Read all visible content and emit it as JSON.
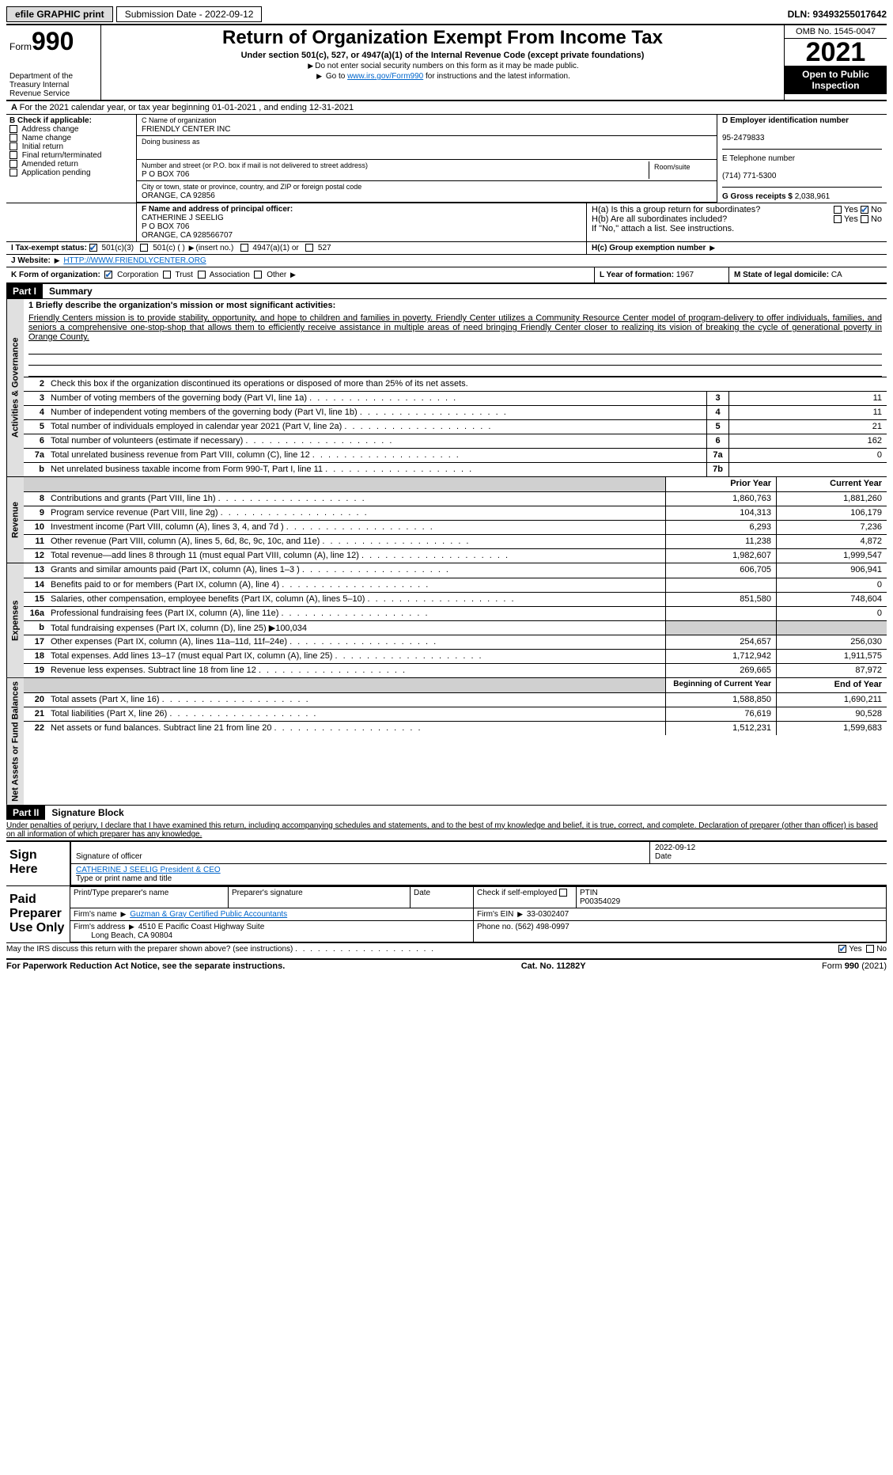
{
  "topbar": {
    "efile": "efile GRAPHIC print",
    "submission_label": "Submission Date - 2022-09-12",
    "dln_label": "DLN: 93493255017642"
  },
  "header": {
    "form_prefix": "Form",
    "form_num": "990",
    "dept": "Department of the Treasury Internal Revenue Service",
    "title": "Return of Organization Exempt From Income Tax",
    "subtitle": "Under section 501(c), 527, or 4947(a)(1) of the Internal Revenue Code (except private foundations)",
    "note1": "Do not enter social security numbers on this form as it may be made public.",
    "note2_pre": "Go to ",
    "note2_link": "www.irs.gov/Form990",
    "note2_post": " for instructions and the latest information.",
    "omb": "OMB No. 1545-0047",
    "year": "2021",
    "open": "Open to Public Inspection"
  },
  "sectionA": {
    "text": "For the 2021 calendar year, or tax year beginning 01-01-2021     , and ending 12-31-2021"
  },
  "blockB": {
    "label": "B Check if applicable:",
    "items": [
      "Address change",
      "Name change",
      "Initial return",
      "Final return/terminated",
      "Amended return",
      "Application pending"
    ]
  },
  "blockC": {
    "name_label": "C Name of organization",
    "name": "FRIENDLY CENTER INC",
    "dba_label": "Doing business as",
    "addr_label": "Number and street (or P.O. box if mail is not delivered to street address)",
    "room_label": "Room/suite",
    "addr": "P O BOX 706",
    "city_label": "City or town, state or province, country, and ZIP or foreign postal code",
    "city": "ORANGE, CA  92856"
  },
  "blockD": {
    "ein_label": "D Employer identification number",
    "ein": "95-2479833",
    "phone_label": "E Telephone number",
    "phone": "(714) 771-5300",
    "gross_label": "G Gross receipts $",
    "gross": "2,038,961"
  },
  "blockF": {
    "label": "F  Name and address of principal officer:",
    "name": "CATHERINE J SEELIG",
    "addr1": "P O BOX 706",
    "addr2": "ORANGE, CA  928566707"
  },
  "blockH": {
    "ha": "H(a)  Is this a group return for subordinates?",
    "hb": "H(b)  Are all subordinates included?",
    "hb_note": "If \"No,\" attach a list. See instructions.",
    "hc": "H(c)  Group exemption number",
    "yes": "Yes",
    "no": "No"
  },
  "blockI": {
    "label": "I   Tax-exempt status:",
    "opt1": "501(c)(3)",
    "opt2": "501(c) (  )",
    "opt2_note": "(insert no.)",
    "opt3": "4947(a)(1) or",
    "opt4": "527"
  },
  "blockJ": {
    "label": "J   Website:",
    "url": "HTTP://WWW.FRIENDLYCENTER.ORG"
  },
  "blockK": {
    "label": "K Form of organization:",
    "opts": [
      "Corporation",
      "Trust",
      "Association",
      "Other"
    ]
  },
  "blockL": {
    "label": "L Year of formation:",
    "val": "1967"
  },
  "blockM": {
    "label": "M State of legal domicile:",
    "val": "CA"
  },
  "part1": {
    "hdr": "Part I",
    "title": "Summary",
    "line1_label": "1  Briefly describe the organization's mission or most significant activities:",
    "mission": "Friendly Centers mission is to provide stability, opportunity, and hope to children and families in poverty. Friendly Center utilizes a Community Resource Center model of program-delivery to offer individuals, families, and seniors a comprehensive one-stop-shop that allows them to efficiently receive assistance in multiple areas of need bringing Friendly Center closer to realizing its vision of breaking the cycle of generational poverty in Orange County.",
    "line2": "Check this box      if the organization discontinued its operations or disposed of more than 25% of its net assets.",
    "lines_gov": [
      {
        "n": "3",
        "d": "Number of voting members of the governing body (Part VI, line 1a)",
        "c": "3",
        "v": "11"
      },
      {
        "n": "4",
        "d": "Number of independent voting members of the governing body (Part VI, line 1b)",
        "c": "4",
        "v": "11"
      },
      {
        "n": "5",
        "d": "Total number of individuals employed in calendar year 2021 (Part V, line 2a)",
        "c": "5",
        "v": "21"
      },
      {
        "n": "6",
        "d": "Total number of volunteers (estimate if necessary)",
        "c": "6",
        "v": "162"
      },
      {
        "n": "7a",
        "d": "Total unrelated business revenue from Part VIII, column (C), line 12",
        "c": "7a",
        "v": "0"
      },
      {
        "n": "b",
        "d": "Net unrelated business taxable income from Form 990-T, Part I, line 11",
        "c": "7b",
        "v": ""
      }
    ],
    "col_prior": "Prior Year",
    "col_curr": "Current Year",
    "lines_rev": [
      {
        "n": "8",
        "d": "Contributions and grants (Part VIII, line 1h)",
        "p": "1,860,763",
        "c": "1,881,260"
      },
      {
        "n": "9",
        "d": "Program service revenue (Part VIII, line 2g)",
        "p": "104,313",
        "c": "106,179"
      },
      {
        "n": "10",
        "d": "Investment income (Part VIII, column (A), lines 3, 4, and 7d )",
        "p": "6,293",
        "c": "7,236"
      },
      {
        "n": "11",
        "d": "Other revenue (Part VIII, column (A), lines 5, 6d, 8c, 9c, 10c, and 11e)",
        "p": "11,238",
        "c": "4,872"
      },
      {
        "n": "12",
        "d": "Total revenue—add lines 8 through 11 (must equal Part VIII, column (A), line 12)",
        "p": "1,982,607",
        "c": "1,999,547"
      }
    ],
    "lines_exp": [
      {
        "n": "13",
        "d": "Grants and similar amounts paid (Part IX, column (A), lines 1–3 )",
        "p": "606,705",
        "c": "906,941"
      },
      {
        "n": "14",
        "d": "Benefits paid to or for members (Part IX, column (A), line 4)",
        "p": "",
        "c": "0"
      },
      {
        "n": "15",
        "d": "Salaries, other compensation, employee benefits (Part IX, column (A), lines 5–10)",
        "p": "851,580",
        "c": "748,604"
      },
      {
        "n": "16a",
        "d": "Professional fundraising fees (Part IX, column (A), line 11e)",
        "p": "",
        "c": "0"
      },
      {
        "n": "b",
        "d": "Total fundraising expenses (Part IX, column (D), line 25) ▶100,034",
        "p": "shade",
        "c": "shade"
      },
      {
        "n": "17",
        "d": "Other expenses (Part IX, column (A), lines 11a–11d, 11f–24e)",
        "p": "254,657",
        "c": "256,030"
      },
      {
        "n": "18",
        "d": "Total expenses. Add lines 13–17 (must equal Part IX, column (A), line 25)",
        "p": "1,712,942",
        "c": "1,911,575"
      },
      {
        "n": "19",
        "d": "Revenue less expenses. Subtract line 18 from line 12",
        "p": "269,665",
        "c": "87,972"
      }
    ],
    "col_begin": "Beginning of Current Year",
    "col_end": "End of Year",
    "lines_net": [
      {
        "n": "20",
        "d": "Total assets (Part X, line 16)",
        "p": "1,588,850",
        "c": "1,690,211"
      },
      {
        "n": "21",
        "d": "Total liabilities (Part X, line 26)",
        "p": "76,619",
        "c": "90,528"
      },
      {
        "n": "22",
        "d": "Net assets or fund balances. Subtract line 21 from line 20",
        "p": "1,512,231",
        "c": "1,599,683"
      }
    ],
    "vert_gov": "Activities & Governance",
    "vert_rev": "Revenue",
    "vert_exp": "Expenses",
    "vert_net": "Net Assets or Fund Balances"
  },
  "part2": {
    "hdr": "Part II",
    "title": "Signature Block",
    "decl": "Under penalties of perjury, I declare that I have examined this return, including accompanying schedules and statements, and to the best of my knowledge and belief, it is true, correct, and complete. Declaration of preparer (other than officer) is based on all information of which preparer has any knowledge.",
    "sign_here": "Sign Here",
    "sig_officer": "Signature of officer",
    "sig_date": "Date",
    "sig_date_val": "2022-09-12",
    "officer_name": "CATHERINE J SEELIG  President & CEO",
    "type_name": "Type or print name and title",
    "paid": "Paid Preparer Use Only",
    "prep_name_hdr": "Print/Type preparer's name",
    "prep_sig_hdr": "Preparer's signature",
    "prep_date_hdr": "Date",
    "prep_check": "Check        if self-employed",
    "ptin_hdr": "PTIN",
    "ptin": "P00354029",
    "firm_name_label": "Firm's name   ",
    "firm_name": "Guzman & Gray Certified Public Accountants",
    "firm_ein_label": "Firm's EIN ",
    "firm_ein": "33-0302407",
    "firm_addr_label": "Firm's address ",
    "firm_addr": "4510 E Pacific Coast Highway Suite",
    "firm_city": "Long Beach, CA  90804",
    "firm_phone_label": "Phone no.",
    "firm_phone": "(562) 498-0997",
    "discuss": "May the IRS discuss this return with the preparer shown above? (see instructions)"
  },
  "footer": {
    "left": "For Paperwork Reduction Act Notice, see the separate instructions.",
    "mid": "Cat. No. 11282Y",
    "right": "Form 990 (2021)"
  }
}
